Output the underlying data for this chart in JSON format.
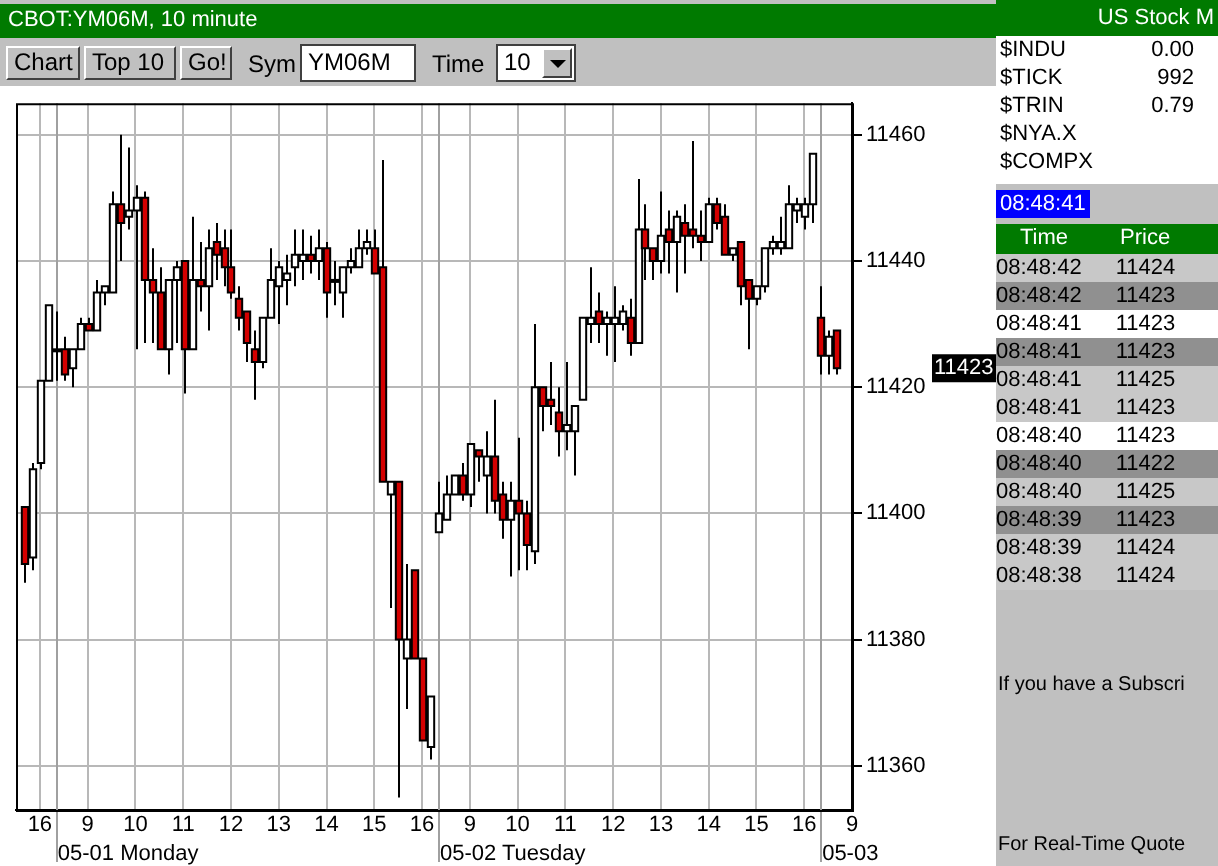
{
  "chart_data": [
    {
      "type": "candlestick",
      "title": "CBOT:YM06M, 10 minute",
      "grid": true,
      "legend": false,
      "colors": [
        null,
        "#d40000",
        "#ffffff",
        "#ffffff",
        "#ffffff",
        "#ffffff",
        "#d40000",
        "#ffffff",
        "#ffffff",
        "#d40000",
        "#ffffff",
        "#ffffff",
        "#ffffff",
        "#d40000",
        "#ffffff",
        "#ffffff",
        "#d40000",
        "#d40000",
        "#d40000",
        "#ffffff",
        "#ffffff",
        "#d40000",
        "#ffffff",
        "#d40000",
        "#ffffff",
        "#d40000",
        "#d40000",
        "#d40000",
        "#d40000",
        "#d40000",
        "#d40000",
        "#ffffff",
        "#ffffff",
        "#ffffff",
        "#ffffff",
        "#ffffff",
        "#ffffff",
        "#d40000",
        "#ffffff",
        "#d40000",
        "#ffffff",
        "#ffffff",
        "#ffffff",
        "#ffffff",
        "#ffffff",
        "#d40000",
        "#d40000",
        "#ffffff",
        "#d40000",
        "#ffffff",
        "#d40000",
        "#d40000",
        "#ffffff",
        "#ffffff",
        "#ffffff",
        "#ffffff",
        "#d40000",
        "#ffffff",
        "#d40000",
        "#ffffff",
        "#d40000",
        "#d40000",
        "#ffffff",
        "#d40000",
        "#d40000",
        "#ffffff",
        "#d40000",
        "#d40000",
        "#d40000",
        "#ffffff",
        "#ffffff",
        "#ffffff",
        "#ffffff",
        "#d40000",
        "#ffffff",
        "#ffffff",
        "#ffffff",
        "#d40000",
        "#ffffff",
        "#d40000",
        "#d40000",
        "#ffffff",
        "#d40000",
        "#ffffff",
        "#d40000",
        "#d40000",
        "#d40000",
        "#ffffff",
        "#d40000",
        "#d40000",
        "#ffffff",
        "#d40000",
        "#d40000",
        "#ffffff",
        "#ffffff",
        "#ffffff",
        "#ffffff",
        "#ffffff",
        "#ffffff",
        "#ffffff",
        "#ffffff",
        "#d40000",
        "#ffffff",
        "#d40000",
        null,
        null
      ],
      "categories": [
        null,
        null,
        null,
        "16",
        null,
        null,
        null,
        null,
        null,
        "9",
        null,
        null,
        null,
        null,
        null,
        "10",
        null,
        null,
        null,
        null,
        null,
        "11",
        null,
        null,
        null,
        null,
        null,
        "12",
        null,
        null,
        null,
        null,
        null,
        "13",
        null,
        null,
        null,
        null,
        null,
        "14",
        null,
        null,
        null,
        null,
        null,
        "15",
        null,
        null,
        null,
        null,
        null,
        "16",
        null,
        null,
        null,
        null,
        null,
        "9",
        null,
        null,
        null,
        null,
        null,
        "10",
        null,
        null,
        null,
        null,
        null,
        "11",
        null,
        null,
        null,
        null,
        null,
        "12",
        null,
        null,
        null,
        null,
        null,
        "13",
        null,
        null,
        null,
        null,
        null,
        "14",
        null,
        null,
        null,
        null,
        null,
        "15",
        null,
        null,
        null,
        null,
        null,
        "16",
        null,
        null,
        null,
        null,
        null,
        "9"
      ],
      "ohlc": [
        null,
        [
          11401,
          11401,
          11389,
          11392
        ],
        [
          11393,
          11408,
          11391,
          11407
        ],
        [
          11408,
          11421,
          11407,
          11421
        ],
        [
          11421,
          11433,
          11421,
          11433
        ],
        [
          11426,
          11432,
          11421,
          11426
        ],
        [
          11426,
          11428,
          11421,
          11422
        ],
        [
          11423,
          11426,
          11420,
          11426
        ],
        [
          11426,
          11431,
          11426,
          11430
        ],
        [
          11430,
          11431,
          11429,
          11429
        ],
        [
          11429,
          11437,
          11429,
          11435
        ],
        [
          11435,
          11436,
          11433,
          11436
        ],
        [
          11435,
          11451,
          11435,
          11449
        ],
        [
          11449,
          11460,
          11440,
          11446
        ],
        [
          11447,
          11458,
          11445,
          11448
        ],
        [
          11448,
          11452,
          11426,
          11450
        ],
        [
          11450,
          11451,
          11427,
          11437
        ],
        [
          11437,
          11442,
          11427,
          11435
        ],
        [
          11435,
          11439,
          11426,
          11426
        ],
        [
          11426,
          11437,
          11422,
          11437
        ],
        [
          11437,
          11440,
          11427,
          11439
        ],
        [
          11440,
          11440,
          11419,
          11426
        ],
        [
          11426,
          11447,
          11426,
          11437
        ],
        [
          11437,
          11443,
          11432,
          11436
        ],
        [
          11436,
          11445,
          11429,
          11442
        ],
        [
          11443,
          11446,
          11437,
          11441
        ],
        [
          11442,
          11445,
          11436,
          11439
        ],
        [
          11439,
          11445,
          11434,
          11435
        ],
        [
          11434,
          11436,
          11429,
          11431
        ],
        [
          11432,
          11432,
          11424,
          11427
        ],
        [
          11426,
          11429,
          11418,
          11424
        ],
        [
          11424,
          11431,
          11423,
          11431
        ],
        [
          11431,
          11442,
          11431,
          11437
        ],
        [
          11436,
          11440,
          11430,
          11439
        ],
        [
          11437,
          11441,
          11433,
          11438
        ],
        [
          11439,
          11445,
          11436,
          11441
        ],
        [
          11440,
          11445,
          11437,
          11441
        ],
        [
          11441,
          11444,
          11438,
          11440
        ],
        [
          11440,
          11445,
          11437,
          11442
        ],
        [
          11442,
          11443,
          11431,
          11435
        ],
        [
          11437,
          11440,
          11433,
          11437
        ],
        [
          11435,
          11439,
          11431,
          11439
        ],
        [
          11439,
          11442,
          11438,
          11440
        ],
        [
          11439,
          11445,
          11439,
          11442
        ],
        [
          11442,
          11445,
          11441,
          11443
        ],
        [
          11442,
          11445,
          11438,
          11438
        ],
        [
          11439,
          11456,
          11405,
          11405
        ],
        [
          11403,
          11405,
          11385,
          11405
        ],
        [
          11405,
          11405,
          11355,
          11380
        ],
        [
          11377,
          11392,
          11369,
          11380
        ],
        [
          11391,
          11391,
          11377,
          11377
        ],
        [
          11377,
          11377,
          11364,
          11364
        ],
        [
          11363,
          11371,
          11361,
          11371
        ],
        [
          11397,
          11405,
          11397,
          11400
        ],
        [
          11399,
          11406,
          11399,
          11403
        ],
        [
          11403,
          11406,
          11403,
          11406
        ],
        [
          11406,
          11408,
          11402,
          11403
        ],
        [
          11403,
          11411,
          11401,
          11411
        ],
        [
          11410,
          11410,
          11405,
          11409
        ],
        [
          11406,
          11413,
          11400,
          11409
        ],
        [
          11409,
          11418,
          11400,
          11402
        ],
        [
          11403,
          11405,
          11396,
          11399
        ],
        [
          11399,
          11405,
          11390,
          11402
        ],
        [
          11402,
          11412,
          11391,
          11400
        ],
        [
          11400,
          11402,
          11391,
          11395
        ],
        [
          11394,
          11430,
          11392,
          11420
        ],
        [
          11420,
          11420,
          11413,
          11417
        ],
        [
          11418,
          11424,
          11414,
          11417
        ],
        [
          11416,
          11420,
          11409,
          11413
        ],
        [
          11413,
          11424,
          11410,
          11414
        ],
        [
          11413,
          11417,
          11406,
          11417
        ],
        [
          11418,
          11431,
          11418,
          11431
        ],
        [
          11430,
          11439,
          11427,
          11431
        ],
        [
          11432,
          11435,
          11427,
          11430
        ],
        [
          11430,
          11432,
          11425,
          11431
        ],
        [
          11430,
          11436,
          11424,
          11431
        ],
        [
          11430,
          11433,
          11429,
          11432
        ],
        [
          11431,
          11434,
          11425,
          11427
        ],
        [
          11427,
          11453,
          11427,
          11445
        ],
        [
          11445,
          11449,
          11437,
          11442
        ],
        [
          11442,
          11442,
          11437,
          11440
        ],
        [
          11440,
          11451,
          11438,
          11444
        ],
        [
          11445,
          11448,
          11438,
          11443
        ],
        [
          11443,
          11448,
          11435,
          11447
        ],
        [
          11446,
          11449,
          11438,
          11444
        ],
        [
          11445,
          11459,
          11442,
          11444
        ],
        [
          11444,
          11448,
          11440,
          11443
        ],
        [
          11443,
          11450,
          11443,
          11449
        ],
        [
          11449,
          11450,
          11445,
          11446
        ],
        [
          11447,
          11449,
          11441,
          11441
        ],
        [
          11441,
          11442,
          11440,
          11442
        ],
        [
          11443,
          11443,
          11433,
          11436
        ],
        [
          11437,
          11437,
          11426,
          11434
        ],
        [
          11434,
          11436,
          11433,
          11436
        ],
        [
          11436,
          11442,
          11435,
          11442
        ],
        [
          11442,
          11444,
          11441,
          11443
        ],
        [
          11442,
          11447,
          11441,
          11443
        ],
        [
          11442,
          11452,
          11442,
          11449
        ],
        [
          11448,
          11450,
          11446,
          11449
        ],
        [
          11447,
          11450,
          11445,
          11449
        ],
        [
          11449,
          11457,
          11446,
          11457
        ],
        [
          11431,
          11436,
          11422,
          11425
        ],
        [
          11425,
          11429,
          11422,
          11428
        ],
        [
          11429,
          11429,
          11422,
          11423
        ],
        null,
        null
      ],
      "ylim": [
        11353,
        11465
      ],
      "yticks": [
        11360,
        11380,
        11400,
        11420,
        11440,
        11460
      ],
      "annotations": [
        "Chart",
        "Top 10",
        "Go!",
        "Sym",
        "YM06M",
        "Time",
        "10",
        "11423",
        "05-01 Monday",
        "05-02 Tuesday",
        "05-03"
      ]
    },
    {
      "type": "other",
      "title": "US Stock M",
      "annotations": [
        "$INDU",
        "0.00",
        "$TICK",
        "992",
        "$TRIN",
        "0.79",
        "$NYA.X",
        "$COMPX"
      ]
    },
    {
      "type": "other",
      "annotations": [
        "08:48:41",
        "Time",
        "Price",
        "08:48:42 11424",
        "08:48:42 11423",
        "08:48:41 11423",
        "08:48:41 11423",
        "08:48:41 11425",
        "08:48:41 11423",
        "08:48:40 11423",
        "08:48:40 11422",
        "08:48:40 11425",
        "08:48:39 11423",
        "08:48:39 11424",
        "08:48:38 11424",
        "If you have a Subscri",
        "For Real-Time Quote"
      ]
    }
  ]
}
